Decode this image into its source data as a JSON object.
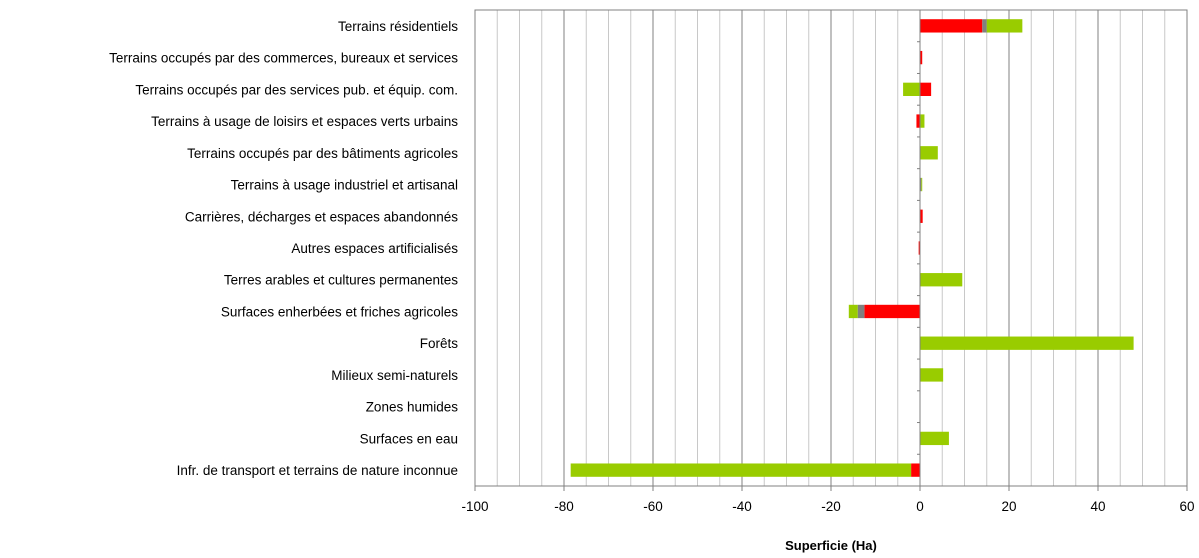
{
  "chart_data": {
    "type": "bar",
    "orientation": "horizontal",
    "stacked": true,
    "xlabel": "Superficie (Ha)",
    "xlim": [
      -100,
      60
    ],
    "major_ticks": [
      -100,
      -80,
      -60,
      -40,
      -20,
      0,
      20,
      40,
      60
    ],
    "minor_step": 5,
    "grid": true,
    "categories": [
      "Terrains résidentiels",
      "Terrains occupés par des commerces, bureaux et services",
      "Terrains occupés par des services pub. et équip. com.",
      "Terrains à usage de loisirs et espaces verts urbains",
      "Terrains occupés par des bâtiments agricoles",
      "Terrains à usage industriel et artisanal",
      "Carrières, décharges et espaces abandonnés",
      "Autres espaces artificialisés",
      "Terres arables et cultures permanentes",
      "Surfaces enherbées et friches agricoles",
      "Forêts",
      "Milieux semi-naturels",
      "Zones humides",
      "Surfaces en eau",
      "Infr. de transport et terrains de nature inconnue"
    ],
    "series": [
      {
        "color": "#ff0000",
        "values": [
          14,
          0.5,
          2.5,
          -0.8,
          0,
          0,
          0.6,
          -0.3,
          0,
          -12.5,
          0,
          0,
          0,
          0,
          -2
        ]
      },
      {
        "color": "#808080",
        "values": [
          1,
          0,
          0,
          0,
          0,
          0.3,
          0,
          0,
          0,
          -1.5,
          0,
          0,
          0,
          0,
          0
        ]
      },
      {
        "color": "#99cc00",
        "values": [
          8,
          0,
          -3.8,
          1,
          4,
          0.2,
          0,
          0,
          9.5,
          -2,
          48,
          5.2,
          0,
          6.5,
          -76.5
        ]
      }
    ]
  }
}
